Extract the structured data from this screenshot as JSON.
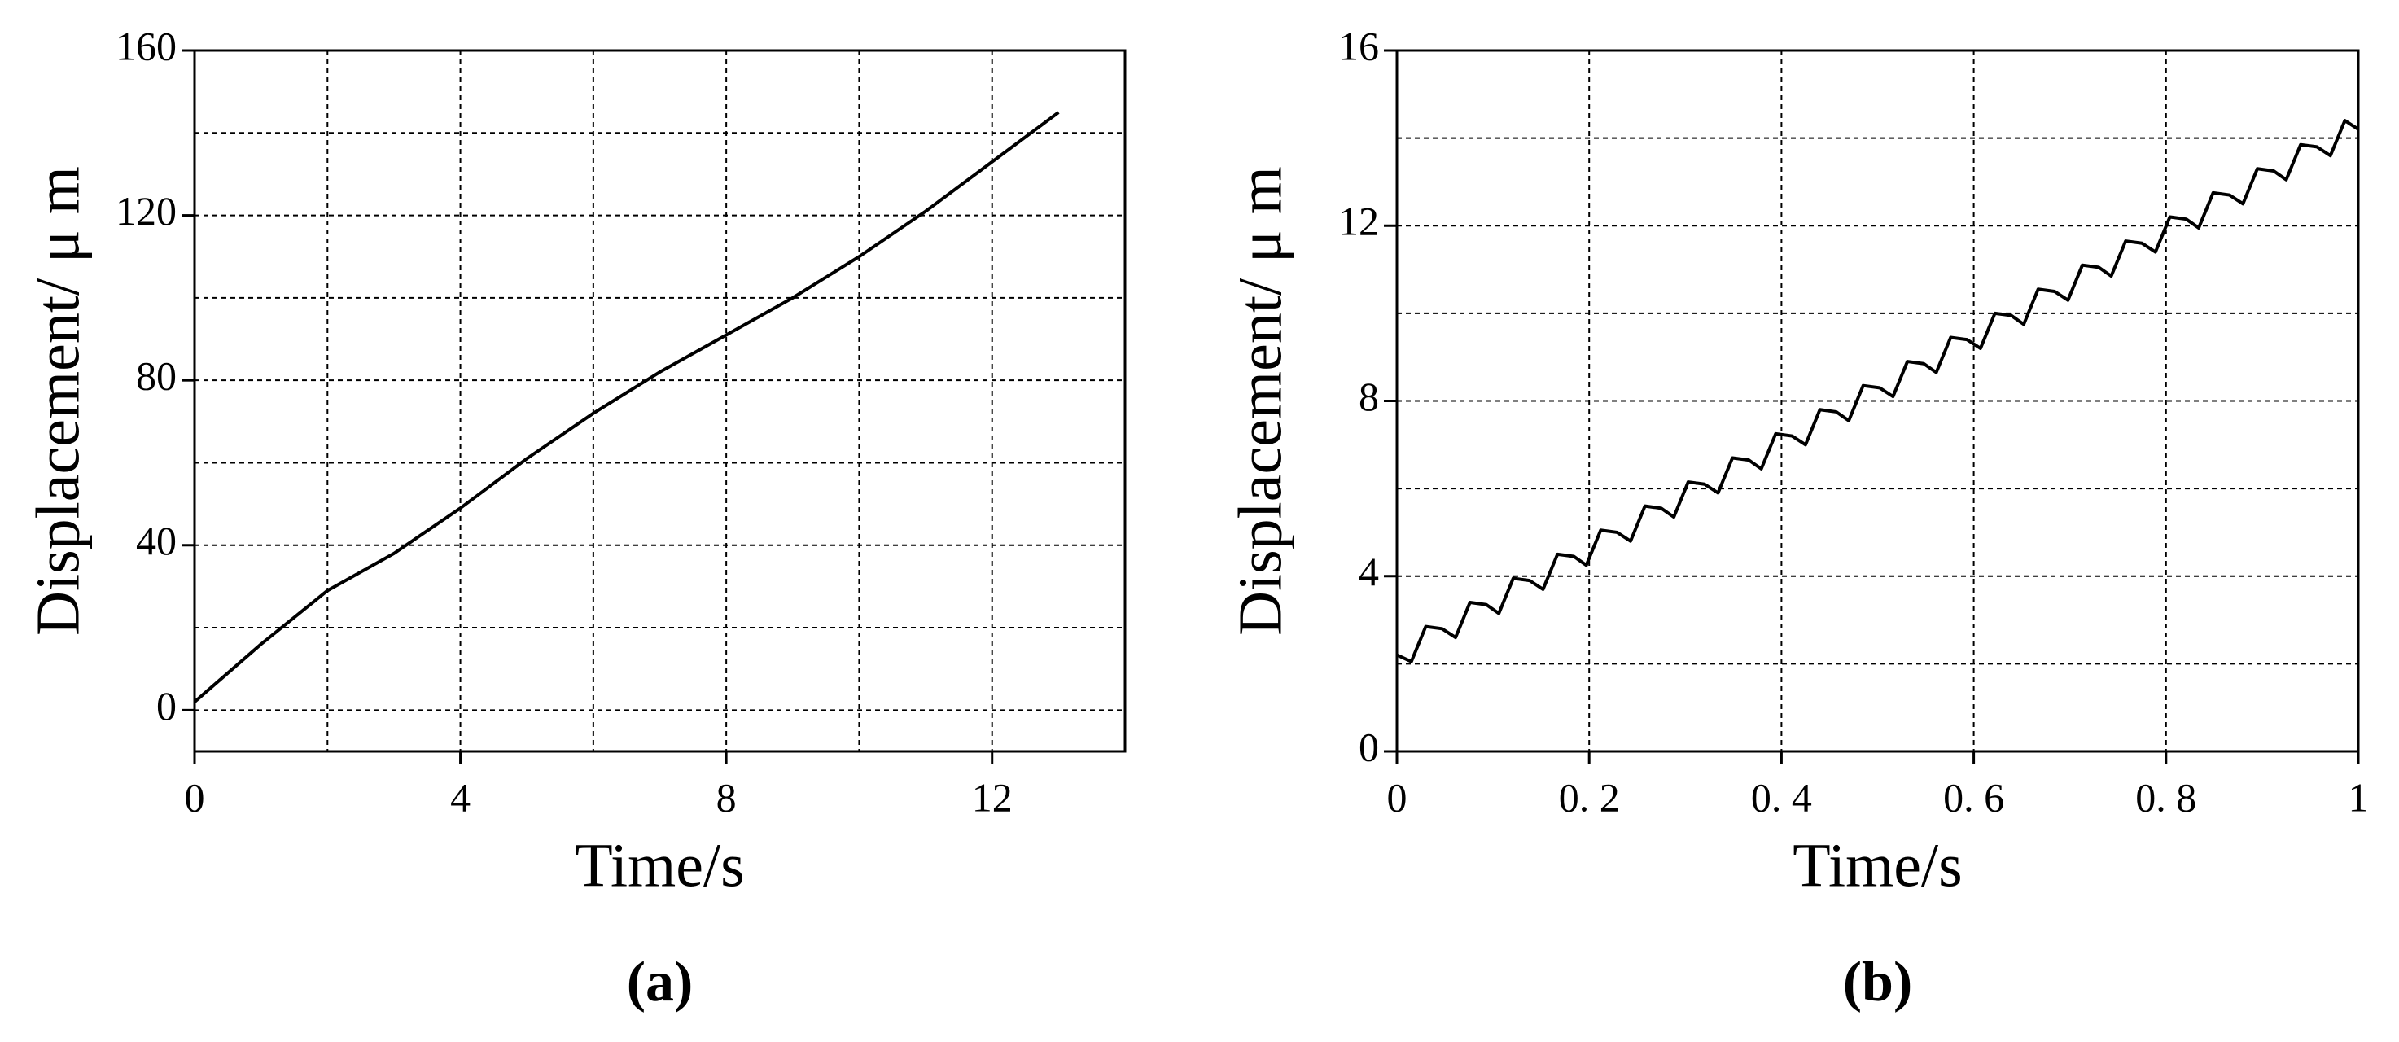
{
  "chart_data": [
    {
      "type": "line",
      "caption": "(a)",
      "xlabel": "Time/s",
      "ylabel": "Displacement/ μ m",
      "xlim": [
        0,
        14
      ],
      "ylim": [
        -10,
        160
      ],
      "xticks": [
        0,
        4,
        8,
        12
      ],
      "yticks": [
        0,
        40,
        80,
        120,
        160
      ],
      "xgrid": [
        2,
        4,
        6,
        8,
        10,
        12
      ],
      "ygrid": [
        0,
        20,
        40,
        60,
        80,
        100,
        120,
        140
      ],
      "grid": true,
      "x": [
        0,
        1,
        2,
        3,
        4,
        5,
        6,
        7,
        8,
        9,
        10,
        11,
        12,
        13
      ],
      "series": [
        {
          "color": "#000000",
          "values": [
            2,
            16,
            29,
            38,
            49,
            61,
            72,
            82,
            91,
            100,
            110,
            121,
            133,
            145
          ]
        }
      ]
    },
    {
      "type": "line",
      "caption": "(b)",
      "xlabel": "Time/s",
      "ylabel": "Displacement/ μ m",
      "xlim": [
        0,
        1
      ],
      "ylim": [
        0,
        16
      ],
      "xticks": [
        0,
        {
          "value": 0.2,
          "label": "0. 2"
        },
        {
          "value": 0.4,
          "label": "0. 4"
        },
        {
          "value": 0.6,
          "label": "0. 6"
        },
        {
          "value": 0.8,
          "label": "0. 8"
        },
        1
      ],
      "yticks": [
        0,
        4,
        8,
        12,
        16
      ],
      "xgrid": [
        0.2,
        0.4,
        0.6,
        0.8
      ],
      "ygrid": [
        2,
        4,
        6,
        8,
        10,
        12,
        14
      ],
      "grid": true,
      "x": [
        0,
        0.015,
        0.03,
        0.047,
        0.061,
        0.076,
        0.093,
        0.106,
        0.121,
        0.138,
        0.152,
        0.167,
        0.184,
        0.197,
        0.212,
        0.229,
        0.243,
        0.258,
        0.275,
        0.288,
        0.303,
        0.32,
        0.334,
        0.349,
        0.366,
        0.379,
        0.394,
        0.411,
        0.425,
        0.44,
        0.457,
        0.47,
        0.485,
        0.502,
        0.516,
        0.531,
        0.548,
        0.561,
        0.576,
        0.593,
        0.607,
        0.622,
        0.639,
        0.652,
        0.667,
        0.684,
        0.698,
        0.713,
        0.73,
        0.743,
        0.758,
        0.775,
        0.789,
        0.804,
        0.821,
        0.834,
        0.849,
        0.866,
        0.88,
        0.895,
        0.912,
        0.925,
        0.94,
        0.957,
        0.971,
        0.986,
        1.0
      ],
      "series": [
        {
          "color": "#000000",
          "values": [
            2.2,
            2.05,
            2.85,
            2.8,
            2.6,
            3.4,
            3.35,
            3.15,
            3.95,
            3.9,
            3.7,
            4.5,
            4.45,
            4.25,
            5.05,
            5.0,
            4.8,
            5.6,
            5.55,
            5.35,
            6.15,
            6.1,
            5.9,
            6.7,
            6.65,
            6.45,
            7.25,
            7.2,
            7.0,
            7.8,
            7.75,
            7.55,
            8.35,
            8.3,
            8.1,
            8.9,
            8.85,
            8.65,
            9.45,
            9.4,
            9.2,
            10.0,
            9.95,
            9.75,
            10.55,
            10.5,
            10.3,
            11.1,
            11.05,
            10.85,
            11.65,
            11.6,
            11.4,
            12.2,
            12.15,
            11.95,
            12.75,
            12.7,
            12.5,
            13.3,
            13.25,
            13.05,
            13.85,
            13.8,
            13.6,
            14.4,
            14.2
          ]
        }
      ]
    }
  ]
}
